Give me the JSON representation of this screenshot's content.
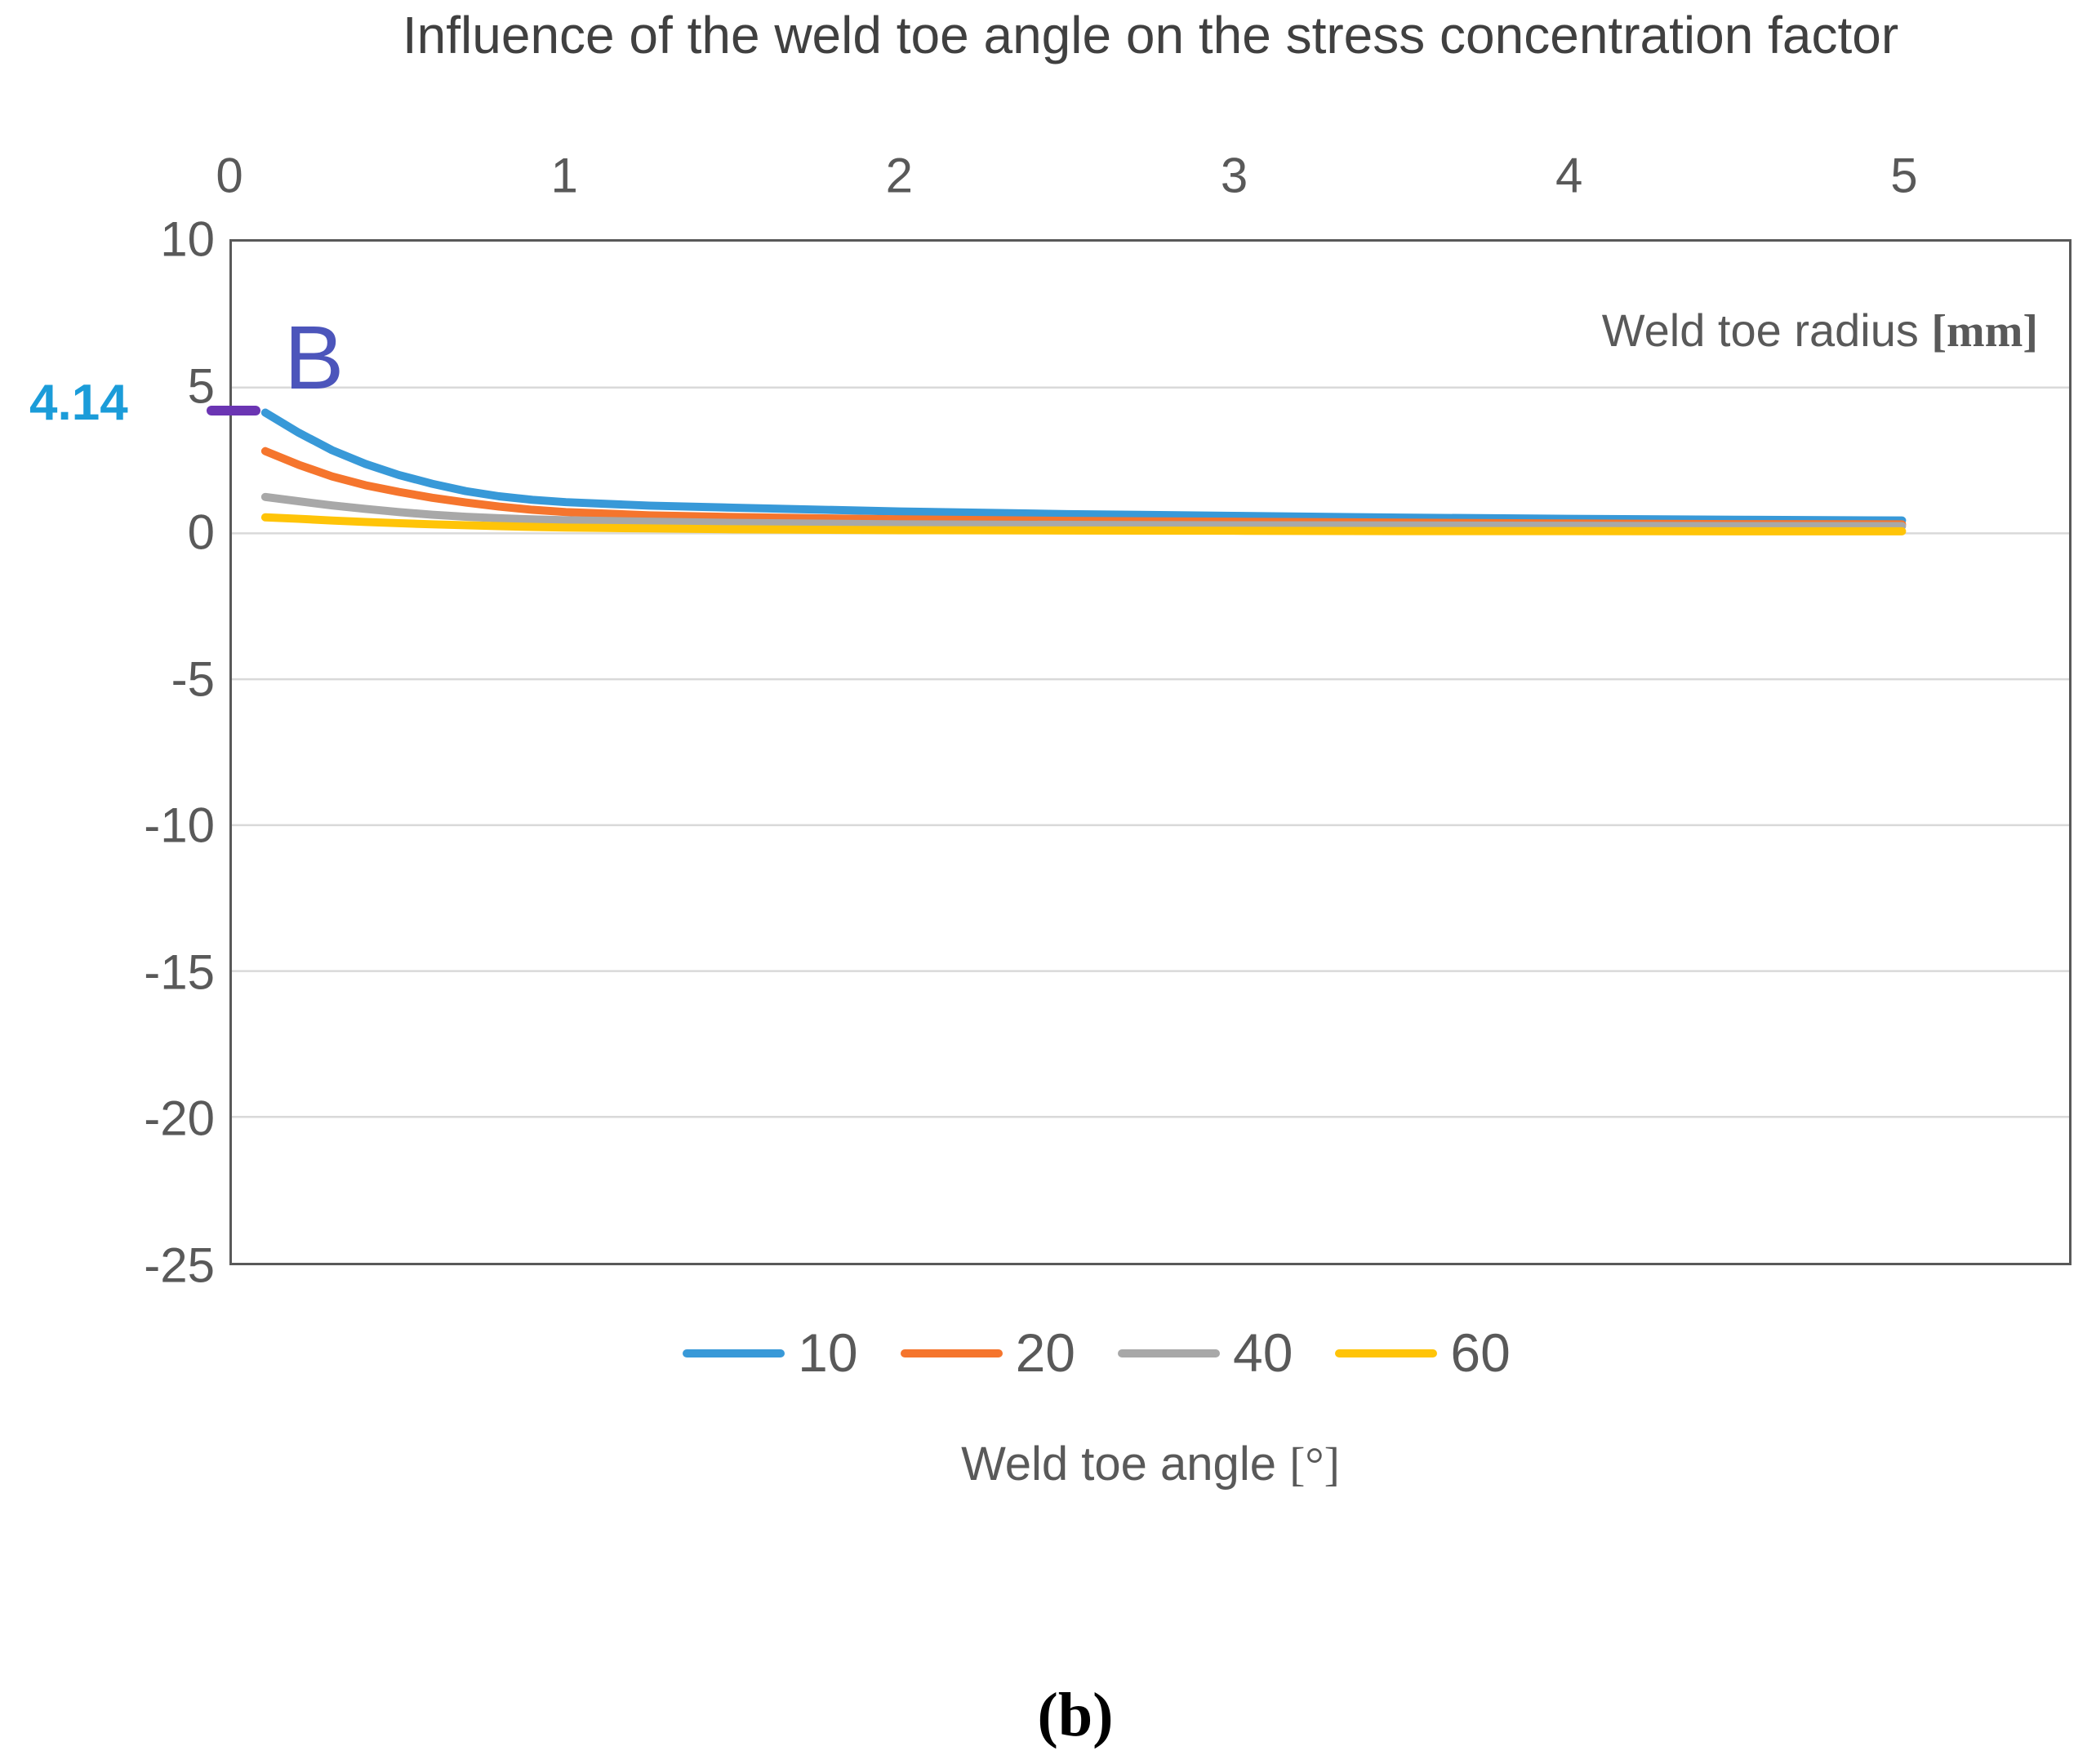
{
  "title": "Influence of the weld toe angle on the stress concentration factor",
  "caption": "(b)",
  "annotation": {
    "point_label": "B",
    "value_label": "4.14",
    "value": 4.14,
    "marker_color": "#6B35B3",
    "point_label_color": "#4C55BB",
    "value_label_color": "#1B9CD9"
  },
  "axes": {
    "inner_label_text": "Weld toe radius ",
    "inner_label_unit": "[mm]",
    "bottom_label_text": "Weld toe angle ",
    "bottom_label_unit": "[°]",
    "x_ticks": [
      0,
      1,
      2,
      3,
      4,
      5
    ],
    "y_ticks": [
      10,
      5,
      0,
      -5,
      -10,
      -15,
      -20,
      -25
    ]
  },
  "legend": [
    {
      "label": "10",
      "color": "#3899D8"
    },
    {
      "label": "20",
      "color": "#F5752D"
    },
    {
      "label": "40",
      "color": "#A8A8A8"
    },
    {
      "label": "60",
      "color": "#FFC408"
    }
  ],
  "colors": {
    "axis_border": "#595959",
    "gridline": "#D9D9D9",
    "tick_text": "#595959",
    "title_text": "#404040"
  },
  "chart_data": {
    "type": "line",
    "title": "Influence of the weld toe angle on the stress concentration factor",
    "xlabel": "Weld toe angle [°]",
    "inner_axis_label": "Weld toe radius [mm]",
    "legend_position": "bottom",
    "grid": "horizontal",
    "xlim": [
      0,
      5.5
    ],
    "ylim": [
      -25,
      10
    ],
    "x_ticks": [
      0,
      1,
      2,
      3,
      4,
      5
    ],
    "y_ticks": [
      10,
      5,
      0,
      -5,
      -10,
      -15,
      -20,
      -25
    ],
    "x": [
      0.1,
      0.2,
      0.3,
      0.4,
      0.5,
      0.6,
      0.7,
      0.8,
      0.9,
      1,
      1.25,
      1.5,
      2,
      2.5,
      3,
      3.5,
      4,
      4.5,
      5
    ],
    "series": [
      {
        "name": "10",
        "color": "#3899D8",
        "values": [
          4.14,
          3.45,
          2.85,
          2.38,
          2.0,
          1.7,
          1.45,
          1.27,
          1.15,
          1.07,
          0.95,
          0.88,
          0.75,
          0.66,
          0.6,
          0.54,
          0.5,
          0.47,
          0.44
        ]
      },
      {
        "name": "20",
        "color": "#F5752D",
        "values": [
          2.82,
          2.35,
          1.95,
          1.65,
          1.42,
          1.22,
          1.06,
          0.92,
          0.81,
          0.73,
          0.62,
          0.56,
          0.48,
          0.43,
          0.4,
          0.37,
          0.34,
          0.32,
          0.31
        ]
      },
      {
        "name": "40",
        "color": "#A8A8A8",
        "values": [
          1.25,
          1.1,
          0.96,
          0.84,
          0.73,
          0.64,
          0.57,
          0.52,
          0.48,
          0.45,
          0.4,
          0.36,
          0.31,
          0.29,
          0.28,
          0.27,
          0.26,
          0.25,
          0.25
        ]
      },
      {
        "name": "60",
        "color": "#FFC408",
        "values": [
          0.55,
          0.5,
          0.44,
          0.39,
          0.35,
          0.31,
          0.28,
          0.25,
          0.22,
          0.2,
          0.17,
          0.14,
          0.11,
          0.1,
          0.09,
          0.08,
          0.08,
          0.07,
          0.07
        ]
      }
    ],
    "annotation": {
      "label": "B",
      "series": "10",
      "x": 0.1,
      "y": 4.14
    }
  }
}
